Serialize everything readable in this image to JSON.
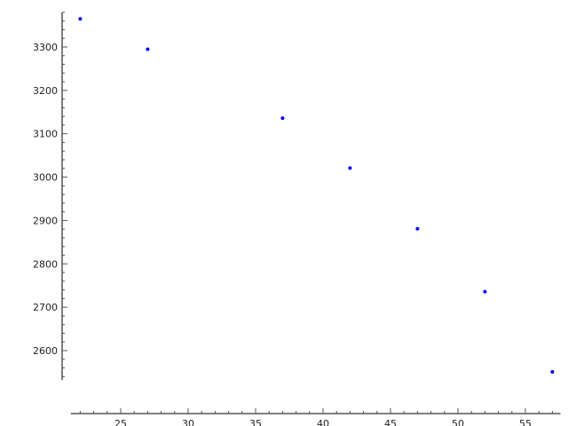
{
  "chart_data": {
    "type": "scatter",
    "title": "",
    "xlabel": "",
    "ylabel": "",
    "xlim": [
      21.3,
      57.6
    ],
    "ylim": [
      2532,
      3380
    ],
    "x_ticks": [
      25,
      30,
      35,
      40,
      45,
      50,
      55
    ],
    "y_ticks": [
      2600,
      2700,
      2800,
      2900,
      3000,
      3100,
      3200,
      3300
    ],
    "x_tick_labels": [
      "25",
      "30",
      "35",
      "40",
      "45",
      "50",
      "55"
    ],
    "y_tick_labels": [
      "2600",
      "2700",
      "2800",
      "2900",
      "3000",
      "3100",
      "3200",
      "3300"
    ],
    "x_minor_step": 1,
    "y_minor_step": 20,
    "grid": false,
    "legend": "none",
    "point_color": "#0000ff",
    "axis_color": "#555555",
    "points": [
      {
        "x": 22,
        "y": 3365
      },
      {
        "x": 27,
        "y": 3295
      },
      {
        "x": 37,
        "y": 3136
      },
      {
        "x": 42,
        "y": 3021
      },
      {
        "x": 47,
        "y": 2881
      },
      {
        "x": 52,
        "y": 2736
      },
      {
        "x": 57,
        "y": 2551
      }
    ]
  }
}
